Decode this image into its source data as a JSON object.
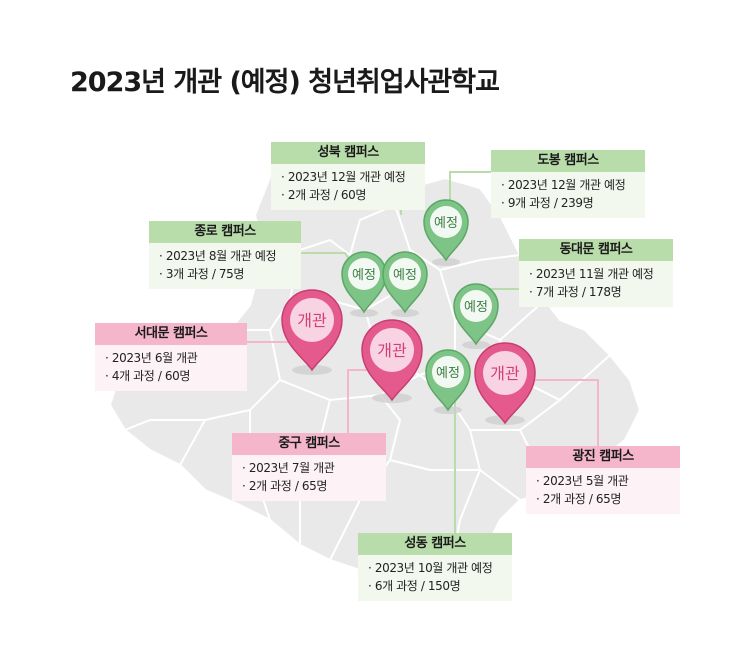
{
  "title": "2023년 개관 (예정) 청년취업사관학교",
  "pins": {
    "planned_label": "예정",
    "open_label": "개관"
  },
  "campuses": {
    "seongbuk": {
      "name": "성북 캠퍼스",
      "line1": "2023년 12월 개관 예정",
      "line2": "2개 과정 / 60명"
    },
    "dobong": {
      "name": "도봉 캠퍼스",
      "line1": "2023년 12월 개관 예정",
      "line2": "9개 과정 / 239명"
    },
    "jongno": {
      "name": "종로 캠퍼스",
      "line1": "2023년 8월 개관 예정",
      "line2": "3개 과정 / 75명"
    },
    "dongdaemun": {
      "name": "동대문 캠퍼스",
      "line1": "2023년 11월 개관 예정",
      "line2": "7개 과정 / 178명"
    },
    "seodaemun": {
      "name": "서대문 캠퍼스",
      "line1": "2023년 6월 개관",
      "line2": "4개 과정 / 60명"
    },
    "junggu": {
      "name": "중구 캠퍼스",
      "line1": "2023년 7월 개관",
      "line2": "2개 과정 / 65명"
    },
    "gwangjin": {
      "name": "광진 캠퍼스",
      "line1": "2023년 5월 개관",
      "line2": "2개 과정 / 65명"
    },
    "seongdong": {
      "name": "성동 캠퍼스",
      "line1": "2023년 10월 개관 예정",
      "line2": "6개 과정 / 150명"
    }
  },
  "colors": {
    "map_fill": "#e9e9e9",
    "map_stroke": "#ffffff",
    "planned_pin": "#7fc487",
    "planned_pin_dark": "#5aa866",
    "open_pin": "#e55a8c",
    "open_pin_dark": "#c93c70",
    "green_header": "#b9dcab",
    "pink_header": "#f5b6cc"
  }
}
